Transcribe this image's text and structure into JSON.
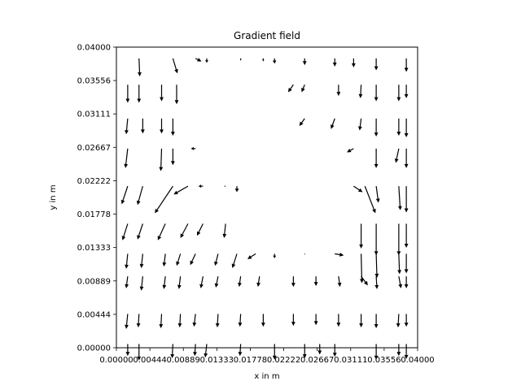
{
  "chart_data": {
    "type": "quiver",
    "title": "Gradient field",
    "xlabel": "x in m",
    "ylabel": "y in m",
    "xlim": [
      0.0,
      0.04
    ],
    "ylim": [
      0.0,
      0.04
    ],
    "x_ticks": [
      "0.00000",
      "0.00444",
      "0.00889",
      "0.01333",
      "0.01778",
      "0.02222",
      "0.02667",
      "0.03111",
      "0.03556",
      "0.04000"
    ],
    "y_ticks": [
      "0.00000",
      "0.00444",
      "0.00889",
      "0.01333",
      "0.01778",
      "0.02222",
      "0.02667",
      "0.03111",
      "0.03556",
      "0.04000"
    ],
    "grid": false,
    "arrow_color": "#000000",
    "grid_x": [
      0.0015,
      0.003,
      0.0075,
      0.01,
      0.0105,
      0.012,
      0.0155,
      0.0165,
      0.0185,
      0.021,
      0.023,
      0.025,
      0.027,
      0.029,
      0.0315,
      0.0345,
      0.0375,
      0.0385
    ],
    "grid_y": [
      0.0005,
      0.0045,
      0.0095,
      0.0125,
      0.0165,
      0.0215,
      0.0265,
      0.0305,
      0.035,
      0.0385
    ],
    "u": [
      [
        0.0,
        0.0,
        0.0,
        0.0,
        0.0,
        0.0,
        0.0,
        0.0,
        0.0,
        0.0,
        0.0,
        0.0,
        0.0,
        0.0,
        0.0,
        0.0,
        0.0,
        0.0
      ],
      [
        0.0,
        0.0,
        0.0,
        0.0,
        0.0,
        0.0,
        0.0,
        0.0,
        0.0,
        0.0,
        0.0,
        0.0,
        0.0,
        0.0,
        0.0,
        0.0,
        0.0,
        0.0
      ],
      [
        0.0,
        0.0,
        0.0,
        0.0,
        0.0,
        0.0,
        0.0,
        0.0,
        0.0,
        0.0,
        0.0,
        0.0,
        0.0,
        0.0,
        0.0,
        0.0,
        0.0,
        0.0
      ],
      [
        0.0,
        0.0,
        0.0,
        0.0,
        0.0,
        0.0,
        0.0,
        0.0,
        0.0,
        0.0,
        0.0,
        0.0,
        0.0,
        0.0,
        0.0,
        0.0,
        0.0,
        0.0
      ],
      [
        0.0,
        0.0,
        0.0,
        0.0,
        0.0,
        0.0,
        0.0,
        0.0,
        0.0,
        0.0,
        0.0,
        0.0,
        0.0,
        0.0,
        0.0,
        0.0,
        0.0,
        0.0
      ],
      [
        0.0,
        0.0,
        0.0,
        0.0,
        0.0,
        0.0,
        0.0,
        0.0,
        0.0,
        0.0,
        0.0,
        0.0,
        0.0,
        0.0,
        0.0,
        0.0,
        0.0,
        0.0
      ],
      [
        0.0,
        0.0,
        0.0,
        0.0,
        0.0,
        0.0,
        0.0,
        0.0,
        0.0,
        0.0,
        0.0,
        0.0,
        0.0,
        0.0,
        0.0,
        0.0,
        0.0,
        0.0
      ],
      [
        0.0,
        0.0,
        0.0,
        0.0,
        0.0,
        0.0,
        0.0,
        0.0,
        0.0,
        0.0,
        0.0,
        0.0,
        0.0,
        0.0,
        0.0,
        0.0,
        0.0,
        0.0
      ],
      [
        0.0,
        0.0,
        0.0,
        0.0,
        0.0,
        0.0,
        0.0,
        0.0,
        0.0,
        0.0,
        0.0,
        0.0,
        0.0,
        0.0,
        0.0,
        0.0,
        0.0,
        0.0
      ],
      [
        0.0,
        0.0,
        0.0,
        0.0,
        0.0,
        0.0,
        0.0,
        0.0,
        0.0,
        0.0,
        0.0,
        0.0,
        0.0,
        0.0,
        0.0,
        0.0,
        0.0,
        0.0
      ]
    ],
    "arrows": [
      {
        "x": 0.0015,
        "y": 0.0005,
        "u": 0.0,
        "v": -0.0016
      },
      {
        "x": 0.003,
        "y": 0.0005,
        "u": 0.0,
        "v": -0.0022
      },
      {
        "x": 0.0075,
        "y": 0.0005,
        "u": -0.0001,
        "v": -0.0019
      },
      {
        "x": 0.0105,
        "y": 0.0005,
        "u": -0.0001,
        "v": -0.0016
      },
      {
        "x": 0.012,
        "y": 0.0005,
        "u": -0.0002,
        "v": -0.0018
      },
      {
        "x": 0.0165,
        "y": 0.0005,
        "u": -0.0001,
        "v": -0.0016
      },
      {
        "x": 0.021,
        "y": 0.0005,
        "u": 0.0,
        "v": -0.0021
      },
      {
        "x": 0.025,
        "y": 0.0005,
        "u": 0.0,
        "v": -0.0019
      },
      {
        "x": 0.027,
        "y": 0.0005,
        "u": 0.0,
        "v": -0.0014
      },
      {
        "x": 0.029,
        "y": 0.0005,
        "u": 0.0,
        "v": -0.0017
      },
      {
        "x": 0.0345,
        "y": 0.0005,
        "u": 0.0,
        "v": -0.0021
      },
      {
        "x": 0.0375,
        "y": 0.0005,
        "u": 0.0,
        "v": -0.0016
      },
      {
        "x": 0.0385,
        "y": 0.0005,
        "u": 0.0,
        "v": -0.002
      },
      {
        "x": 0.0015,
        "y": 0.0045,
        "u": -0.0002,
        "v": -0.002
      },
      {
        "x": 0.003,
        "y": 0.0045,
        "u": -0.0001,
        "v": -0.0018
      },
      {
        "x": 0.006,
        "y": 0.0045,
        "u": -0.0001,
        "v": -0.0019
      },
      {
        "x": 0.0085,
        "y": 0.0045,
        "u": -0.0001,
        "v": -0.0018
      },
      {
        "x": 0.0105,
        "y": 0.0045,
        "u": -0.0002,
        "v": -0.0017
      },
      {
        "x": 0.0135,
        "y": 0.0045,
        "u": -0.0001,
        "v": -0.0018
      },
      {
        "x": 0.0165,
        "y": 0.0045,
        "u": -0.0001,
        "v": -0.0017
      },
      {
        "x": 0.0195,
        "y": 0.0045,
        "u": 0.0,
        "v": -0.0017
      },
      {
        "x": 0.0235,
        "y": 0.0045,
        "u": 0.0,
        "v": -0.0016
      },
      {
        "x": 0.0265,
        "y": 0.0045,
        "u": 0.0,
        "v": -0.0015
      },
      {
        "x": 0.0295,
        "y": 0.0045,
        "u": 0.0,
        "v": -0.0017
      },
      {
        "x": 0.0325,
        "y": 0.0045,
        "u": 0.0,
        "v": -0.0018
      },
      {
        "x": 0.0345,
        "y": 0.0045,
        "u": 0.0,
        "v": -0.0019
      },
      {
        "x": 0.0375,
        "y": 0.0045,
        "u": -0.0001,
        "v": -0.0018
      },
      {
        "x": 0.0385,
        "y": 0.0045,
        "u": 0.0,
        "v": -0.0017
      },
      {
        "x": 0.0015,
        "y": 0.0095,
        "u": -0.0002,
        "v": -0.0016
      },
      {
        "x": 0.0035,
        "y": 0.0095,
        "u": -0.0002,
        "v": -0.0019
      },
      {
        "x": 0.0065,
        "y": 0.0095,
        "u": -0.0002,
        "v": -0.0017
      },
      {
        "x": 0.0085,
        "y": 0.0095,
        "u": -0.0002,
        "v": -0.0017
      },
      {
        "x": 0.0115,
        "y": 0.0095,
        "u": -0.0003,
        "v": -0.0016
      },
      {
        "x": 0.0135,
        "y": 0.0095,
        "u": -0.0003,
        "v": -0.0015
      },
      {
        "x": 0.0165,
        "y": 0.0095,
        "u": -0.0002,
        "v": -0.0014
      },
      {
        "x": 0.019,
        "y": 0.0095,
        "u": -0.0002,
        "v": -0.0014
      },
      {
        "x": 0.0235,
        "y": 0.0095,
        "u": 0.0,
        "v": -0.0014
      },
      {
        "x": 0.0265,
        "y": 0.0095,
        "u": 0.0,
        "v": -0.0013
      },
      {
        "x": 0.0295,
        "y": 0.0095,
        "u": 0.0002,
        "v": -0.0014
      },
      {
        "x": 0.0325,
        "y": 0.0095,
        "u": 0.0009,
        "v": -0.0012
      },
      {
        "x": 0.0345,
        "y": 0.0095,
        "u": 0.0001,
        "v": -0.0017
      },
      {
        "x": 0.0375,
        "y": 0.0095,
        "u": 0.0003,
        "v": -0.0016
      },
      {
        "x": 0.0385,
        "y": 0.0095,
        "u": 0.0,
        "v": -0.0016
      },
      {
        "x": 0.0015,
        "y": 0.0125,
        "u": -0.0002,
        "v": -0.002
      },
      {
        "x": 0.0035,
        "y": 0.0125,
        "u": -0.0002,
        "v": -0.0019
      },
      {
        "x": 0.0065,
        "y": 0.0125,
        "u": -0.0002,
        "v": -0.0017
      },
      {
        "x": 0.0085,
        "y": 0.0125,
        "u": -0.0005,
        "v": -0.0016
      },
      {
        "x": 0.0105,
        "y": 0.0125,
        "u": -0.0007,
        "v": -0.0015
      },
      {
        "x": 0.0135,
        "y": 0.0125,
        "u": -0.0004,
        "v": -0.0016
      },
      {
        "x": 0.016,
        "y": 0.0125,
        "u": -0.0006,
        "v": -0.0019
      },
      {
        "x": 0.0185,
        "y": 0.0125,
        "u": -0.0011,
        "v": -0.0007
      },
      {
        "x": 0.021,
        "y": 0.0125,
        "u": 0.0,
        "v": -0.0006
      },
      {
        "x": 0.025,
        "y": 0.0125,
        "u": 0.0001,
        "v": -0.0001
      },
      {
        "x": 0.029,
        "y": 0.0125,
        "u": 0.0012,
        "v": -0.0002
      },
      {
        "x": 0.0325,
        "y": 0.0125,
        "u": 0.0001,
        "v": -0.0039
      },
      {
        "x": 0.0345,
        "y": 0.0125,
        "u": 0.0001,
        "v": -0.0032
      },
      {
        "x": 0.0375,
        "y": 0.0125,
        "u": 0.0001,
        "v": -0.0027
      },
      {
        "x": 0.0385,
        "y": 0.0125,
        "u": 0.0,
        "v": -0.0026
      },
      {
        "x": 0.0015,
        "y": 0.0165,
        "u": -0.0007,
        "v": -0.0022
      },
      {
        "x": 0.0035,
        "y": 0.0165,
        "u": -0.0007,
        "v": -0.0021
      },
      {
        "x": 0.0065,
        "y": 0.0165,
        "u": -0.001,
        "v": -0.0022
      },
      {
        "x": 0.0095,
        "y": 0.0165,
        "u": -0.001,
        "v": -0.0019
      },
      {
        "x": 0.0115,
        "y": 0.0165,
        "u": -0.0008,
        "v": -0.0016
      },
      {
        "x": 0.0145,
        "y": 0.0165,
        "u": -0.0002,
        "v": -0.0019
      },
      {
        "x": 0.0325,
        "y": 0.0165,
        "u": 0.0,
        "v": -0.0033
      },
      {
        "x": 0.0345,
        "y": 0.0165,
        "u": 0.0,
        "v": -0.0042
      },
      {
        "x": 0.0375,
        "y": 0.0165,
        "u": 0.0,
        "v": -0.0042
      },
      {
        "x": 0.0385,
        "y": 0.0165,
        "u": 0.0,
        "v": -0.0032
      },
      {
        "x": 0.0015,
        "y": 0.0215,
        "u": -0.0008,
        "v": -0.0024
      },
      {
        "x": 0.0035,
        "y": 0.0215,
        "u": -0.0007,
        "v": -0.0025
      },
      {
        "x": 0.0075,
        "y": 0.0215,
        "u": -0.0024,
        "v": -0.0036
      },
      {
        "x": 0.0095,
        "y": 0.0215,
        "u": -0.0019,
        "v": -0.0011
      },
      {
        "x": 0.0115,
        "y": 0.0215,
        "u": -0.0006,
        "v": 0.0
      },
      {
        "x": 0.0145,
        "y": 0.0215,
        "u": -0.0002,
        "v": 0.0
      },
      {
        "x": 0.016,
        "y": 0.0215,
        "u": 0.0,
        "v": -0.0008
      },
      {
        "x": 0.0315,
        "y": 0.0215,
        "u": 0.0012,
        "v": -0.0008
      },
      {
        "x": 0.033,
        "y": 0.0215,
        "u": 0.0014,
        "v": -0.0036
      },
      {
        "x": 0.0345,
        "y": 0.0215,
        "u": 0.0003,
        "v": -0.0022
      },
      {
        "x": 0.0375,
        "y": 0.0215,
        "u": 0.0002,
        "v": -0.0032
      },
      {
        "x": 0.0385,
        "y": 0.0215,
        "u": 0.0,
        "v": -0.0035
      },
      {
        "x": 0.0015,
        "y": 0.0265,
        "u": -0.0003,
        "v": -0.0026
      },
      {
        "x": 0.006,
        "y": 0.0265,
        "u": -0.0001,
        "v": -0.003
      },
      {
        "x": 0.0075,
        "y": 0.0265,
        "u": 0.0,
        "v": -0.0022
      },
      {
        "x": 0.0105,
        "y": 0.0265,
        "u": -0.0006,
        "v": 0.0
      },
      {
        "x": 0.0315,
        "y": 0.0265,
        "u": -0.0009,
        "v": -0.0005
      },
      {
        "x": 0.0345,
        "y": 0.0265,
        "u": 0.0,
        "v": -0.0026
      },
      {
        "x": 0.0375,
        "y": 0.0265,
        "u": -0.0004,
        "v": -0.0019
      },
      {
        "x": 0.0385,
        "y": 0.0265,
        "u": 0.0,
        "v": -0.0026
      },
      {
        "x": 0.0015,
        "y": 0.0305,
        "u": -0.0002,
        "v": -0.0021
      },
      {
        "x": 0.0035,
        "y": 0.0305,
        "u": 0.0,
        "v": -0.002
      },
      {
        "x": 0.006,
        "y": 0.0305,
        "u": 0.0,
        "v": -0.002
      },
      {
        "x": 0.0075,
        "y": 0.0305,
        "u": 0.0,
        "v": -0.0023
      },
      {
        "x": 0.025,
        "y": 0.0305,
        "u": -0.0007,
        "v": -0.001
      },
      {
        "x": 0.029,
        "y": 0.0305,
        "u": -0.0005,
        "v": -0.0014
      },
      {
        "x": 0.0325,
        "y": 0.0305,
        "u": -0.0002,
        "v": -0.0016
      },
      {
        "x": 0.0345,
        "y": 0.0305,
        "u": 0.0,
        "v": -0.0024
      },
      {
        "x": 0.0375,
        "y": 0.0305,
        "u": 0.0,
        "v": -0.0023
      },
      {
        "x": 0.0385,
        "y": 0.0305,
        "u": 0.0,
        "v": -0.0025
      },
      {
        "x": 0.0015,
        "y": 0.035,
        "u": 0.0,
        "v": -0.0024
      },
      {
        "x": 0.003,
        "y": 0.035,
        "u": 0.0,
        "v": -0.0024
      },
      {
        "x": 0.006,
        "y": 0.035,
        "u": 0.0,
        "v": -0.0022
      },
      {
        "x": 0.008,
        "y": 0.035,
        "u": 0.0,
        "v": -0.0026
      },
      {
        "x": 0.0235,
        "y": 0.035,
        "u": -0.0007,
        "v": -0.001
      },
      {
        "x": 0.025,
        "y": 0.035,
        "u": -0.0004,
        "v": -0.001
      },
      {
        "x": 0.0295,
        "y": 0.035,
        "u": 0.0,
        "v": -0.0015
      },
      {
        "x": 0.0325,
        "y": 0.035,
        "u": -0.0001,
        "v": -0.0018
      },
      {
        "x": 0.0345,
        "y": 0.035,
        "u": 0.0,
        "v": -0.0022
      },
      {
        "x": 0.0375,
        "y": 0.035,
        "u": 0.0,
        "v": -0.0022
      },
      {
        "x": 0.0385,
        "y": 0.035,
        "u": 0.0,
        "v": -0.0018
      },
      {
        "x": 0.003,
        "y": 0.0385,
        "u": 0.0001,
        "v": -0.0024
      },
      {
        "x": 0.0075,
        "y": 0.0385,
        "u": 0.0006,
        "v": -0.002
      },
      {
        "x": 0.0105,
        "y": 0.0385,
        "u": 0.0008,
        "v": -0.0004
      },
      {
        "x": 0.012,
        "y": 0.0385,
        "u": 0.0,
        "v": -0.0006
      },
      {
        "x": 0.0165,
        "y": 0.0385,
        "u": 0.0,
        "v": -0.0003
      },
      {
        "x": 0.0195,
        "y": 0.0385,
        "u": 0.0,
        "v": -0.0004
      },
      {
        "x": 0.021,
        "y": 0.0385,
        "u": 0.0,
        "v": -0.0007
      },
      {
        "x": 0.025,
        "y": 0.0385,
        "u": 0.0,
        "v": -0.0009
      },
      {
        "x": 0.029,
        "y": 0.0385,
        "u": 0.0,
        "v": -0.0011
      },
      {
        "x": 0.0315,
        "y": 0.0385,
        "u": 0.0,
        "v": -0.0012
      },
      {
        "x": 0.0345,
        "y": 0.0385,
        "u": 0.0,
        "v": -0.0016
      },
      {
        "x": 0.0385,
        "y": 0.0385,
        "u": 0.0,
        "v": -0.0018
      }
    ]
  }
}
